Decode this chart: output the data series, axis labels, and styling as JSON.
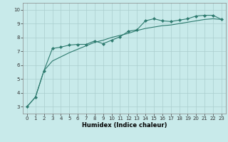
{
  "xlabel": "Humidex (Indice chaleur)",
  "bg_color": "#c8eaea",
  "line_color": "#2d7a6e",
  "grid_color": "#aacece",
  "xlim": [
    -0.5,
    23.5
  ],
  "ylim": [
    2.5,
    10.5
  ],
  "yticks": [
    3,
    4,
    5,
    6,
    7,
    8,
    9,
    10
  ],
  "xticks": [
    0,
    1,
    2,
    3,
    4,
    5,
    6,
    7,
    8,
    9,
    10,
    11,
    12,
    13,
    14,
    15,
    16,
    17,
    18,
    19,
    20,
    21,
    22,
    23
  ],
  "line1_x": [
    0,
    1,
    2,
    3,
    4,
    5,
    6,
    7,
    8,
    9,
    10,
    11,
    12,
    13,
    14,
    15,
    16,
    17,
    18,
    19,
    20,
    21,
    22,
    23
  ],
  "line1_y": [
    3.0,
    3.7,
    5.6,
    7.2,
    7.3,
    7.45,
    7.5,
    7.5,
    7.75,
    7.55,
    7.8,
    8.05,
    8.45,
    8.55,
    9.2,
    9.35,
    9.2,
    9.15,
    9.25,
    9.35,
    9.55,
    9.6,
    9.6,
    9.3
  ],
  "line2_x": [
    0,
    1,
    2,
    3,
    4,
    5,
    6,
    7,
    8,
    9,
    10,
    11,
    12,
    13,
    14,
    15,
    16,
    17,
    18,
    19,
    20,
    21,
    22,
    23
  ],
  "line2_y": [
    3.0,
    3.7,
    5.6,
    6.3,
    6.6,
    6.9,
    7.15,
    7.4,
    7.65,
    7.8,
    8.0,
    8.15,
    8.3,
    8.5,
    8.65,
    8.75,
    8.85,
    8.9,
    9.0,
    9.1,
    9.2,
    9.3,
    9.35,
    9.3
  ],
  "xlabel_fontsize": 6.0,
  "tick_fontsize": 5.0,
  "linewidth": 0.8,
  "markersize": 2.2
}
